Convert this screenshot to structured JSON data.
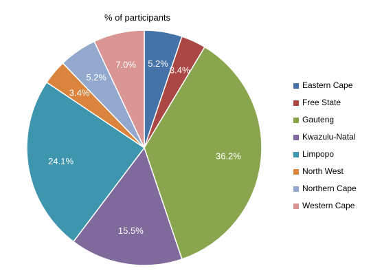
{
  "chart_data": {
    "type": "pie",
    "title": "% of participants",
    "categories": [
      "Eastern Cape",
      "Free State",
      "Gauteng",
      "Kwazulu-Natal",
      "Limpopo",
      "North West",
      "Northern Cape",
      "Western Cape"
    ],
    "values": [
      5.2,
      3.4,
      36.2,
      15.5,
      24.1,
      3.4,
      5.2,
      7.0
    ],
    "value_labels": [
      "5.2%",
      "3.4%",
      "36.2%",
      "15.5%",
      "24.1%",
      "3.4%",
      "5.2%",
      "7.0%"
    ],
    "colors": [
      "#4572A7",
      "#AA4643",
      "#89A54E",
      "#80699B",
      "#3D96AE",
      "#DB843D",
      "#92A8CD",
      "#D99694"
    ],
    "start_angle": "12 o'clock",
    "direction": "clockwise",
    "legend_position": "right"
  }
}
